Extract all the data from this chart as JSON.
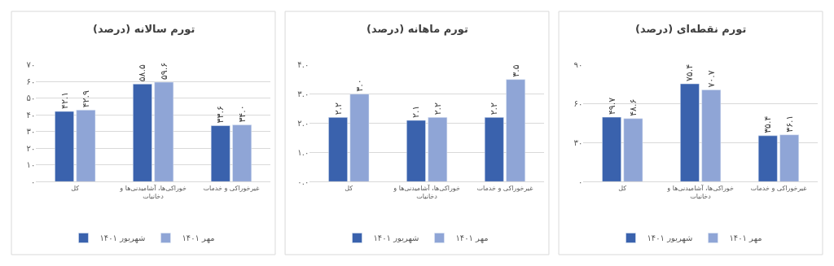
{
  "chart_data": [
    {
      "type": "bar",
      "title": "تورم سالانه (درصد)",
      "categories": [
        "کل",
        "خوراکی‌ها، آشامیدنی‌ها و دخانیات",
        "غیرخوراکی و خدمات"
      ],
      "series": [
        {
          "name": "شهریور ۱۴۰۱",
          "color": "#3a62ad",
          "values": [
            42.1,
            58.5,
            33.6
          ],
          "value_labels": [
            "۴۲.۱",
            "۵۸.۵",
            "۳۳.۶"
          ]
        },
        {
          "name": "مهر ۱۴۰۱",
          "color": "#8fa5d6",
          "values": [
            42.9,
            59.6,
            34.0
          ],
          "value_labels": [
            "۴۲.۹",
            "۵۹.۶",
            "۳۴.۰"
          ]
        }
      ],
      "ylim": [
        0,
        70
      ],
      "yticks": [
        {
          "value": 0,
          "label": "۰"
        },
        {
          "value": 10,
          "label": "۱۰"
        },
        {
          "value": 20,
          "label": "۲۰"
        },
        {
          "value": 30,
          "label": "۳۰"
        },
        {
          "value": 40,
          "label": "۴۰"
        },
        {
          "value": 50,
          "label": "۵۰"
        },
        {
          "value": 60,
          "label": "۶۰"
        },
        {
          "value": 70,
          "label": "۷۰"
        }
      ],
      "grid": "y",
      "legend": "bottom"
    },
    {
      "type": "bar",
      "title": "تورم ماهانه (درصد)",
      "categories": [
        "کل",
        "خوراکی‌ها، آشامیدنی‌ها و دخانیات",
        "غیرخوراکی و خدمات"
      ],
      "series": [
        {
          "name": "شهریور ۱۴۰۱",
          "color": "#3a62ad",
          "values": [
            2.2,
            2.1,
            2.2
          ],
          "value_labels": [
            "۲.۲",
            "۲.۱",
            "۲.۲"
          ]
        },
        {
          "name": "مهر ۱۴۰۱",
          "color": "#8fa5d6",
          "values": [
            3.0,
            2.2,
            3.5
          ],
          "value_labels": [
            "۳.۰",
            "۲.۲",
            "۳.۵"
          ]
        }
      ],
      "ylim": [
        0,
        4
      ],
      "yticks": [
        {
          "value": 0,
          "label": "۰.۰"
        },
        {
          "value": 1,
          "label": "۱.۰"
        },
        {
          "value": 2,
          "label": "۲.۰"
        },
        {
          "value": 3,
          "label": "۳.۰"
        },
        {
          "value": 4,
          "label": "۴.۰"
        }
      ],
      "grid": "y",
      "legend": "bottom"
    },
    {
      "type": "bar",
      "title": "تورم نقطه‌ای (درصد)",
      "categories": [
        "کل",
        "خوراکی‌ها، آشامیدنی‌ها و دخانیات",
        "غیرخوراکی و خدمات"
      ],
      "series": [
        {
          "name": "شهریور ۱۴۰۱",
          "color": "#3a62ad",
          "values": [
            49.7,
            75.4,
            35.4
          ],
          "value_labels": [
            "۴۹.۷",
            "۷۵.۴",
            "۳۵.۴"
          ]
        },
        {
          "name": "مهر ۱۴۰۱",
          "color": "#8fa5d6",
          "values": [
            48.6,
            70.7,
            36.1
          ],
          "value_labels": [
            "۴۸.۶",
            "۷۰.۷",
            "۳۶.۱"
          ]
        }
      ],
      "ylim": [
        0,
        90
      ],
      "yticks": [
        {
          "value": 0,
          "label": "۰"
        },
        {
          "value": 30,
          "label": "۳۰"
        },
        {
          "value": 60,
          "label": "۶۰"
        },
        {
          "value": 90,
          "label": "۹۰"
        }
      ],
      "grid": "y",
      "legend": "bottom"
    }
  ]
}
